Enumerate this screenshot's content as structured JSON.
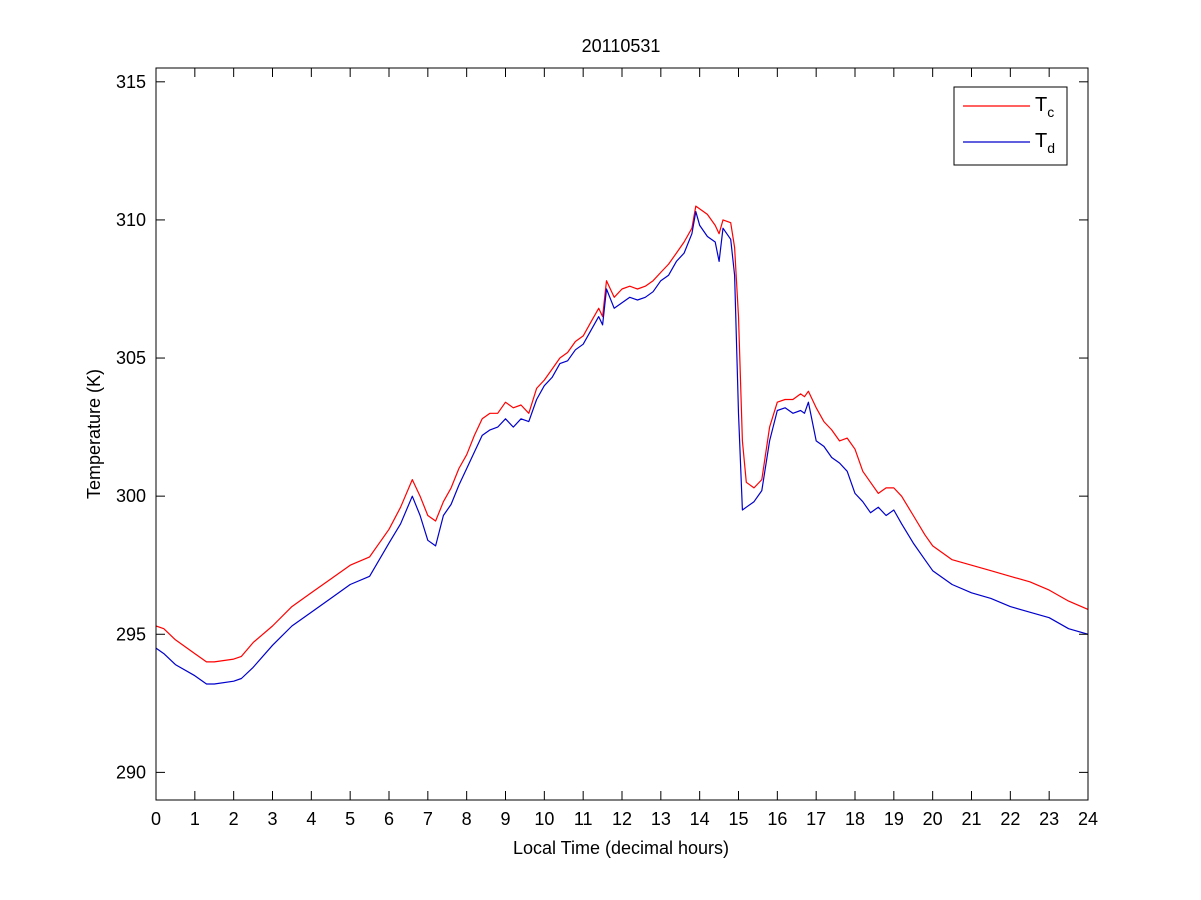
{
  "chart_data": {
    "type": "line",
    "title": "20110531",
    "xlabel": "Local Time (decimal hours)",
    "ylabel": "Temperature (K)",
    "xlim": [
      0,
      24
    ],
    "ylim": [
      289,
      315.5
    ],
    "xticks": [
      0,
      1,
      2,
      3,
      4,
      5,
      6,
      7,
      8,
      9,
      10,
      11,
      12,
      13,
      14,
      15,
      16,
      17,
      18,
      19,
      20,
      21,
      22,
      23,
      24
    ],
    "yticks": [
      290,
      295,
      300,
      305,
      310,
      315
    ],
    "grid": false,
    "legend_position": "top-right",
    "series": [
      {
        "name": "T",
        "subscript": "c",
        "color": "#ff0000",
        "x": [
          0,
          0.2,
          0.5,
          1,
          1.3,
          1.5,
          2,
          2.2,
          2.5,
          3,
          3.5,
          4,
          4.5,
          5,
          5.5,
          6,
          6.3,
          6.6,
          6.8,
          7,
          7.2,
          7.4,
          7.6,
          7.8,
          8,
          8.2,
          8.4,
          8.6,
          8.8,
          9,
          9.2,
          9.4,
          9.6,
          9.8,
          10,
          10.2,
          10.4,
          10.6,
          10.8,
          11,
          11.2,
          11.4,
          11.5,
          11.6,
          11.8,
          12,
          12.2,
          12.4,
          12.6,
          12.8,
          13,
          13.2,
          13.4,
          13.6,
          13.8,
          13.9,
          14,
          14.2,
          14.4,
          14.5,
          14.6,
          14.8,
          14.9,
          15,
          15.1,
          15.2,
          15.4,
          15.6,
          15.8,
          16,
          16.2,
          16.4,
          16.6,
          16.7,
          16.8,
          17,
          17.2,
          17.4,
          17.6,
          17.8,
          18,
          18.2,
          18.4,
          18.6,
          18.8,
          19,
          19.2,
          19.5,
          19.8,
          20,
          20.5,
          21,
          21.5,
          22,
          22.5,
          23,
          23.5,
          24
        ],
        "values": [
          295.3,
          295.2,
          294.8,
          294.3,
          294.0,
          294.0,
          294.1,
          294.2,
          294.7,
          295.3,
          296.0,
          296.5,
          297.0,
          297.5,
          297.8,
          298.8,
          299.6,
          300.6,
          300.0,
          299.3,
          299.1,
          299.8,
          300.3,
          301.0,
          301.5,
          302.2,
          302.8,
          303.0,
          303.0,
          303.4,
          303.2,
          303.3,
          303.0,
          303.9,
          304.2,
          304.6,
          305.0,
          305.2,
          305.6,
          305.8,
          306.3,
          306.8,
          306.5,
          307.8,
          307.2,
          307.5,
          307.6,
          307.5,
          307.6,
          307.8,
          308.1,
          308.4,
          308.8,
          309.2,
          309.7,
          310.5,
          310.4,
          310.2,
          309.8,
          309.5,
          310.0,
          309.9,
          309.0,
          306.5,
          302.0,
          300.5,
          300.3,
          300.6,
          302.5,
          303.4,
          303.5,
          303.5,
          303.7,
          303.6,
          303.8,
          303.2,
          302.7,
          302.4,
          302.0,
          302.1,
          301.7,
          300.9,
          300.5,
          300.1,
          300.3,
          300.3,
          300.0,
          299.3,
          298.6,
          298.2,
          297.7,
          297.5,
          297.3,
          297.1,
          296.9,
          296.6,
          296.2,
          295.9
        ]
      },
      {
        "name": "T",
        "subscript": "d",
        "color": "#0000cc",
        "x": [
          0,
          0.2,
          0.5,
          1,
          1.3,
          1.5,
          2,
          2.2,
          2.5,
          3,
          3.5,
          4,
          4.5,
          5,
          5.5,
          6,
          6.3,
          6.6,
          6.8,
          7,
          7.2,
          7.4,
          7.6,
          7.8,
          8,
          8.2,
          8.4,
          8.6,
          8.8,
          9,
          9.2,
          9.4,
          9.6,
          9.8,
          10,
          10.2,
          10.4,
          10.6,
          10.8,
          11,
          11.2,
          11.4,
          11.5,
          11.6,
          11.8,
          12,
          12.2,
          12.4,
          12.6,
          12.8,
          13,
          13.2,
          13.4,
          13.6,
          13.8,
          13.9,
          14,
          14.2,
          14.4,
          14.5,
          14.6,
          14.8,
          14.9,
          15,
          15.1,
          15.2,
          15.4,
          15.6,
          15.8,
          16,
          16.2,
          16.4,
          16.6,
          16.7,
          16.8,
          17,
          17.2,
          17.4,
          17.6,
          17.8,
          18,
          18.2,
          18.4,
          18.6,
          18.8,
          19,
          19.2,
          19.5,
          19.8,
          20,
          20.5,
          21,
          21.5,
          22,
          22.5,
          23,
          23.5,
          24
        ],
        "values": [
          294.5,
          294.3,
          293.9,
          293.5,
          293.2,
          293.2,
          293.3,
          293.4,
          293.8,
          294.6,
          295.3,
          295.8,
          296.3,
          296.8,
          297.1,
          298.3,
          299.0,
          300.0,
          299.3,
          298.4,
          298.2,
          299.3,
          299.7,
          300.4,
          301.0,
          301.6,
          302.2,
          302.4,
          302.5,
          302.8,
          302.5,
          302.8,
          302.7,
          303.5,
          304.0,
          304.3,
          304.8,
          304.9,
          305.3,
          305.5,
          306.0,
          306.5,
          306.2,
          307.5,
          306.8,
          307.0,
          307.2,
          307.1,
          307.2,
          307.4,
          307.8,
          308.0,
          308.5,
          308.8,
          309.5,
          310.3,
          309.8,
          309.4,
          309.2,
          308.5,
          309.7,
          309.3,
          308.0,
          303.0,
          299.5,
          299.6,
          299.8,
          300.2,
          302.0,
          303.1,
          303.2,
          303.0,
          303.1,
          303.0,
          303.4,
          302.0,
          301.8,
          301.4,
          301.2,
          300.9,
          300.1,
          299.8,
          299.4,
          299.6,
          299.3,
          299.5,
          299.0,
          298.3,
          297.7,
          297.3,
          296.8,
          296.5,
          296.3,
          296.0,
          295.8,
          295.6,
          295.2,
          295.0
        ]
      }
    ]
  }
}
